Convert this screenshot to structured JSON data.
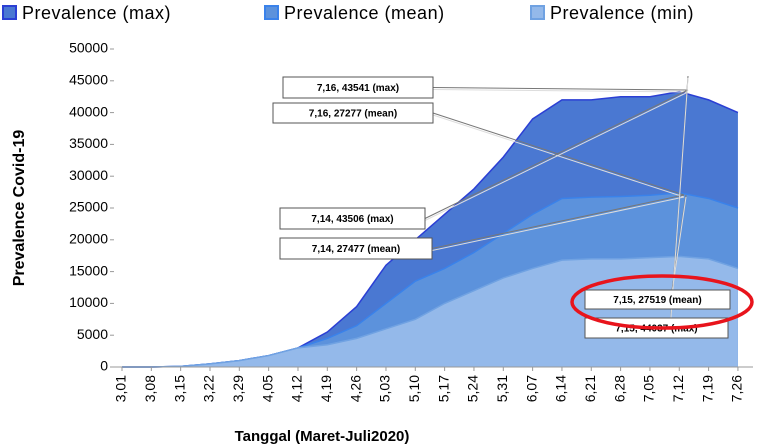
{
  "chart_data": {
    "type": "area",
    "x_label": "Tanggal (Maret-Juli2020)",
    "y_label": "Prevalence Covid-19",
    "categories": [
      "3,01",
      "3,08",
      "3,15",
      "3,22",
      "3,29",
      "4,05",
      "4,12",
      "4,19",
      "4,26",
      "5,03",
      "5,10",
      "5,17",
      "5,24",
      "5,31",
      "6,07",
      "6,14",
      "6,21",
      "6,28",
      "7,05",
      "7,12",
      "7,19",
      "7,26"
    ],
    "series": [
      {
        "name": "Prevalence (max)",
        "color": "#4a78d2",
        "line_color": "#2b3fd4",
        "values": [
          0,
          0,
          100,
          500,
          1000,
          1800,
          3000,
          5500,
          9500,
          16000,
          20000,
          24000,
          28000,
          33000,
          39000,
          42000,
          42000,
          42500,
          42500,
          43300,
          42000,
          40000
        ]
      },
      {
        "name": "Prevalence (mean)",
        "color": "#5c92dc",
        "line_color": "#3a82ea",
        "values": [
          0,
          0,
          100,
          500,
          1000,
          1800,
          3000,
          4500,
          6500,
          10000,
          13500,
          15500,
          18000,
          21000,
          24000,
          26500,
          26700,
          26800,
          27000,
          27400,
          26500,
          25000
        ]
      },
      {
        "name": "Prevalence (min)",
        "color": "#94b9ea",
        "line_color": "#70a2e2",
        "values": [
          0,
          0,
          100,
          500,
          1000,
          1800,
          3000,
          3500,
          4500,
          6000,
          7500,
          10000,
          12000,
          14000,
          15500,
          16800,
          17000,
          17000,
          17200,
          17400,
          17000,
          15500
        ]
      }
    ],
    "ylim": [
      0,
      50000
    ],
    "yticks": [
      0,
      5000,
      10000,
      15000,
      20000,
      25000,
      30000,
      35000,
      40000,
      45000,
      50000
    ],
    "annotations": [
      "7,16, 43541 (max)",
      "7,16, 27277 (mean)",
      "7,14, 43506 (max)",
      "7,14, 27477 (mean)",
      "7,15, 27519 (mean)",
      "7,15, 44037 (max)"
    ]
  }
}
